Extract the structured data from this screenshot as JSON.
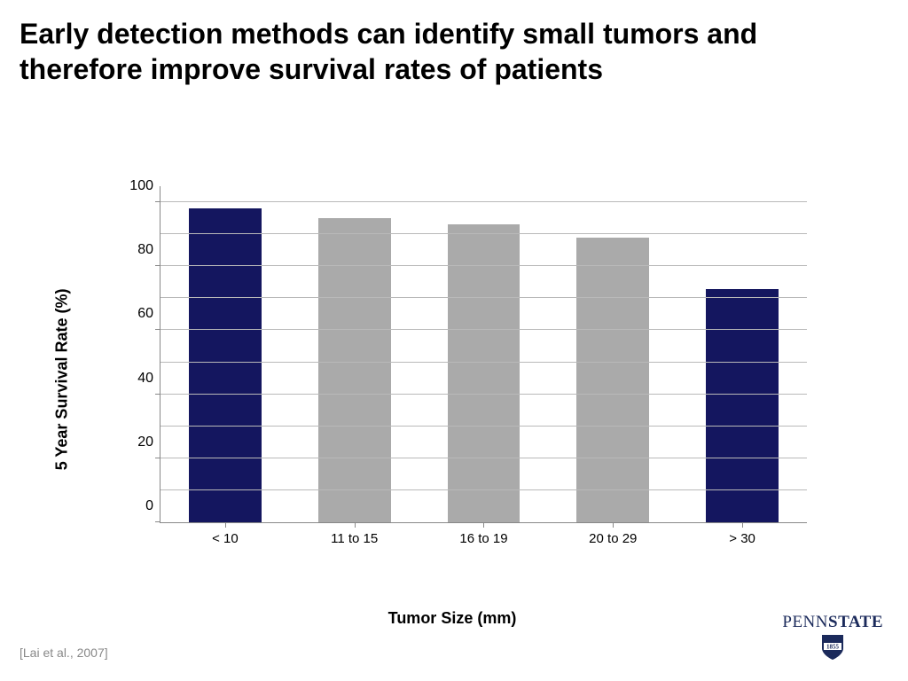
{
  "title": "Early detection methods can identify small tumors and therefore improve survival rates of patients",
  "citation": "[Lai et al., 2007]",
  "logo": {
    "text_thin": "PENN",
    "text_bold": "STATE",
    "shield_color": "#1b2a5b",
    "shield_text": "1855",
    "shield_text_color": "#ffffff"
  },
  "chart": {
    "type": "bar",
    "ylabel": "5 Year Survival Rate (%)",
    "xlabel": "Tumor Size (mm)",
    "ylim": [
      0,
      105
    ],
    "ytick_step": 20,
    "yticks": [
      0,
      20,
      40,
      60,
      80,
      100
    ],
    "minor_step": 10,
    "minor_lines": [
      10,
      30,
      50,
      70,
      90
    ],
    "categories": [
      "< 10",
      "11 to 15",
      "16 to 19",
      "20 to 29",
      "> 30"
    ],
    "values": [
      98,
      95,
      93,
      89,
      73
    ],
    "bar_colors": [
      "#14165f",
      "#aaaaaa",
      "#aaaaaa",
      "#aaaaaa",
      "#14165f"
    ],
    "bar_width": 0.56,
    "background_color": "#ffffff",
    "grid_color": "#b9b9b9",
    "axis_color": "#888888",
    "label_fontsize": 18,
    "tick_fontsize": 16,
    "xtick_fontsize": 15
  }
}
